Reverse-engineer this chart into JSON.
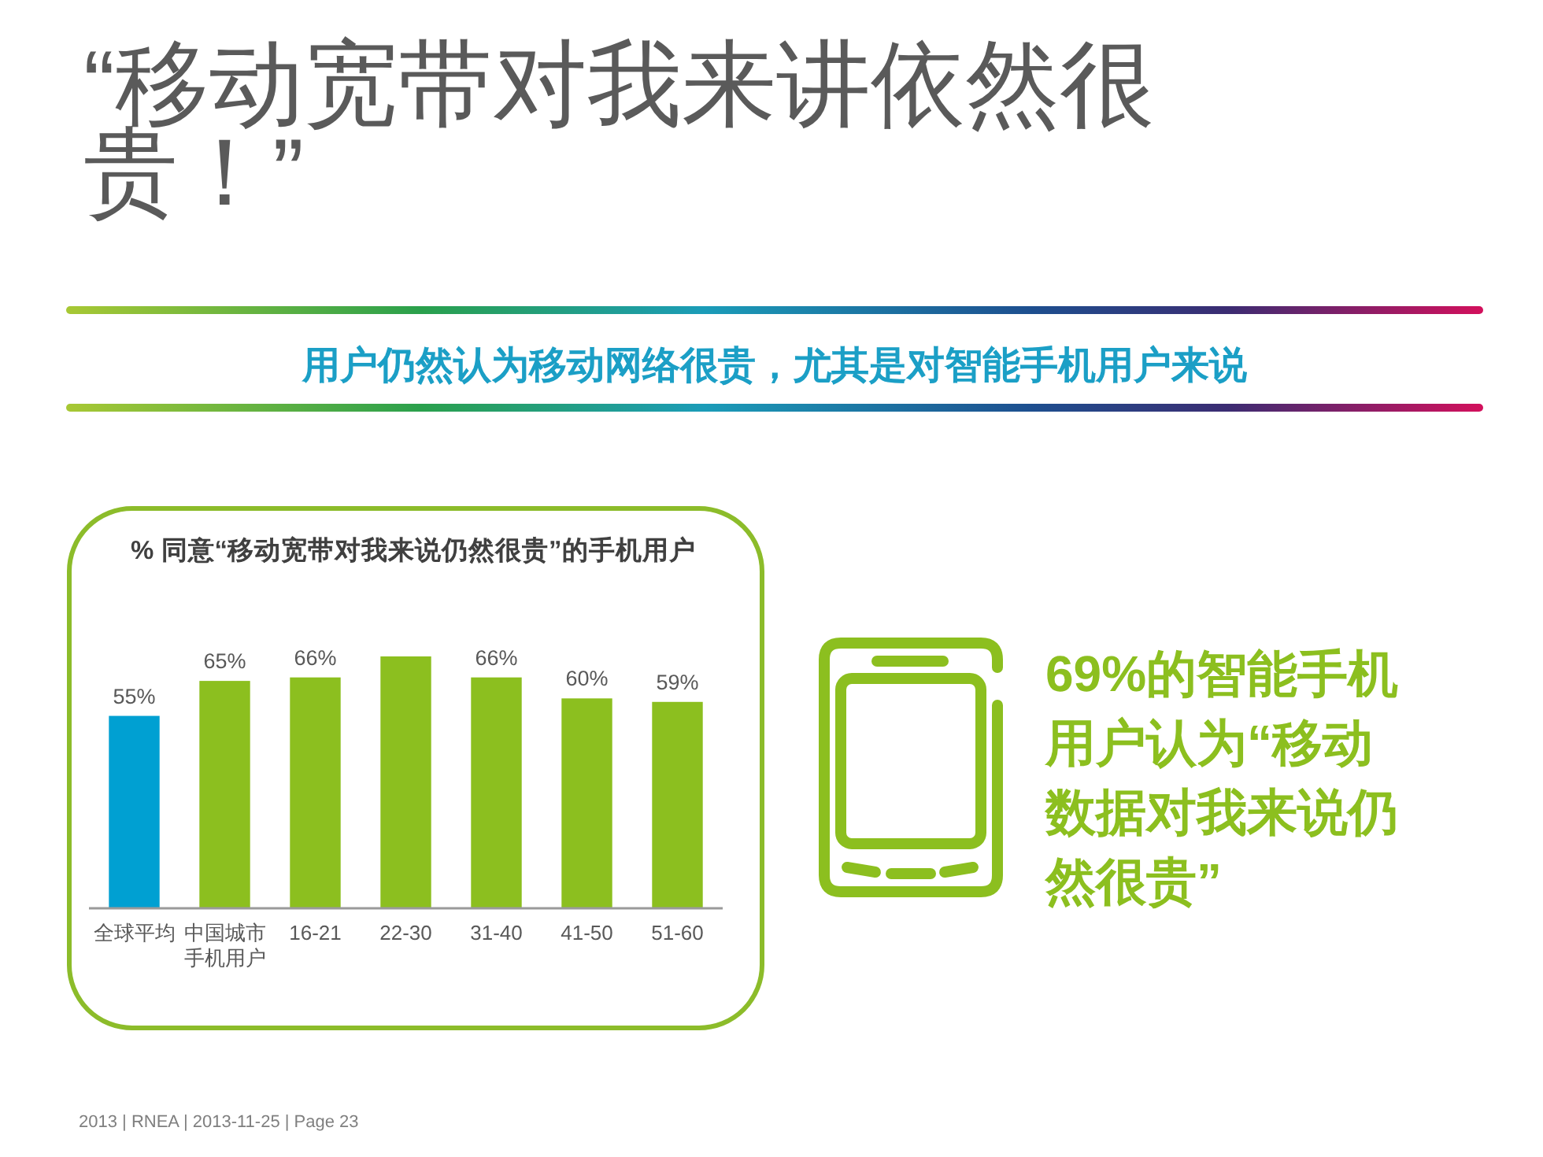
{
  "chart_data": {
    "type": "bar",
    "title": "“移动宽带对我来讲依然很贵！”",
    "subtitle": "用户仍然认为移动网络很贵，尤其是对智能手机用户来说",
    "categories": [
      "全球平均",
      "中国城市手机用户",
      "16-21",
      "22-30",
      "31-40",
      "41-50",
      "51-60"
    ],
    "values": [
      55,
      65,
      66,
      72,
      66,
      60,
      59
    ],
    "colors": [
      "#00a0d2",
      "#8cbf1f",
      "#8cbf1f",
      "#8cbf1f",
      "#8cbf1f",
      "#8cbf1f",
      "#8cbf1f"
    ],
    "value_labels": [
      "55%",
      "65%",
      "66%",
      null,
      "66%",
      "60%",
      "59%"
    ],
    "annotations": [
      "% 同意“移动宽带对我来说仍然很贵”的手机用户",
      "69%的智能手机用户认为“移动数据对我来说仍然很贵”",
      "2013 | RNEA | 2013-11-25 | Page 23"
    ]
  }
}
